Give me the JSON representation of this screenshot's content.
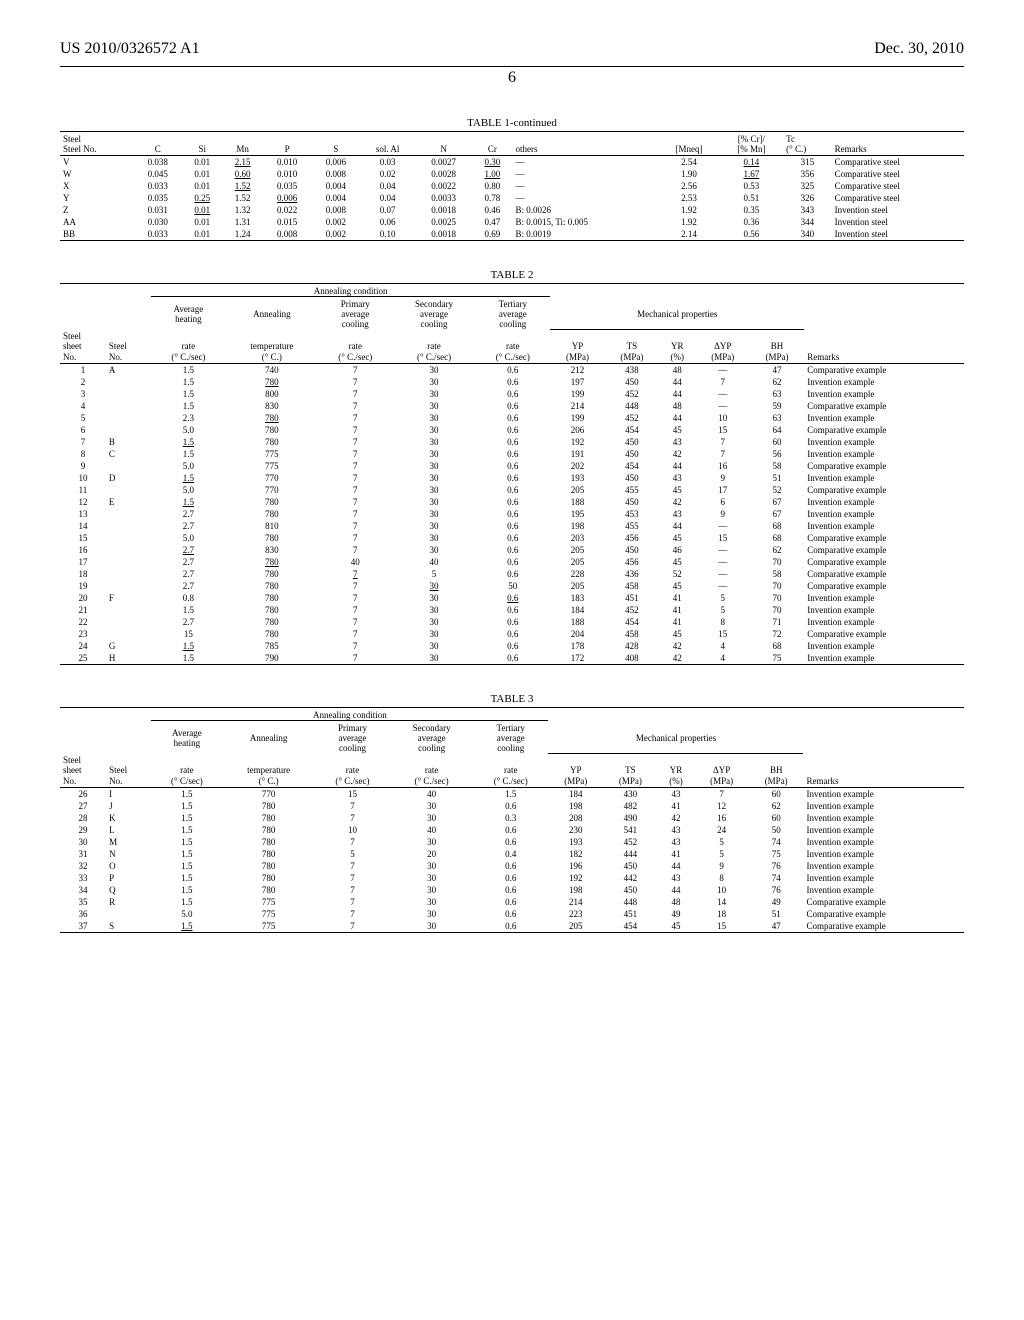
{
  "header": {
    "left": "US 2010/0326572 A1",
    "right": "Dec. 30, 2010",
    "page": "6"
  },
  "t1": {
    "caption": "TABLE 1-continued",
    "cols": [
      "Steel No.",
      "C",
      "Si",
      "Mn",
      "P",
      "S",
      "sol. Al",
      "N",
      "Cr",
      "others",
      "[Mneq]",
      "[% Cr]/ [% Mn]",
      "Tc (° C.)",
      "Remarks"
    ],
    "rows": [
      {
        "no": "V",
        "c": "0.038",
        "si": "0.01",
        "mn": "2.15",
        "mn_u": 1,
        "p": "0.010",
        "s": "0.006",
        "al": "0.03",
        "n": "0.0027",
        "cr": "0.30",
        "cr_u": 1,
        "oth": "—",
        "mneq": "2.54",
        "ratio": "0.14",
        "ratio_u": 1,
        "tc": "315",
        "rem": "Comparative steel"
      },
      {
        "no": "W",
        "c": "0.045",
        "si": "0.01",
        "mn": "0.60",
        "mn_u": 1,
        "p": "0.010",
        "s": "0.008",
        "al": "0.02",
        "n": "0.0028",
        "cr": "1.00",
        "cr_u": 1,
        "oth": "—",
        "mneq": "1.90",
        "ratio": "1.67",
        "ratio_u": 1,
        "tc": "356",
        "rem": "Comparative steel"
      },
      {
        "no": "X",
        "c": "0.033",
        "si": "0.01",
        "mn": "1.52",
        "mn_u": 1,
        "p": "0.035",
        "s": "0.004",
        "al": "0.04",
        "n": "0.0022",
        "cr": "0.80",
        "oth": "—",
        "mneq": "2.56",
        "ratio": "0.53",
        "tc": "325",
        "rem": "Comparative steel"
      },
      {
        "no": "Y",
        "c": "0.035",
        "si": "0.25",
        "si_u": 1,
        "mn": "1.52",
        "p": "0.006",
        "p_u": 1,
        "s": "0.004",
        "al": "0.04",
        "n": "0.0033",
        "cr": "0.78",
        "oth": "—",
        "mneq": "2.53",
        "ratio": "0.51",
        "tc": "326",
        "rem": "Comparative steel"
      },
      {
        "no": "Z",
        "c": "0.031",
        "si": "0.01",
        "si_u": 1,
        "mn": "1.32",
        "p": "0.022",
        "s": "0.008",
        "al": "0.07",
        "n": "0.0018",
        "cr": "0.46",
        "oth": "B: 0.0026",
        "mneq": "1.92",
        "ratio": "0.35",
        "tc": "343",
        "rem": "Invention steel"
      },
      {
        "no": "AA",
        "c": "0.030",
        "si": "0.01",
        "mn": "1.31",
        "p": "0.015",
        "s": "0.002",
        "al": "0.06",
        "n": "0.0025",
        "cr": "0.47",
        "oth": "B: 0.0015, Ti: 0.005",
        "mneq": "1.92",
        "ratio": "0.36",
        "tc": "344",
        "rem": "Invention steel"
      },
      {
        "no": "BB",
        "c": "0.033",
        "si": "0.01",
        "mn": "1.24",
        "p": "0.008",
        "s": "0.002",
        "al": "0.10",
        "n": "0.0018",
        "cr": "0.69",
        "oth": "B: 0.0019",
        "mneq": "2.14",
        "ratio": "0.56",
        "tc": "340",
        "rem": "Invention steel"
      }
    ]
  },
  "t2": {
    "caption": "TABLE 2",
    "group1": "Annealing condition",
    "group2": "Mechanical properties",
    "cols": {
      "c1_top": "Steel",
      "c1_bot1": "sheet",
      "c1_bot2": "No.",
      "c2_bot1": "Steel",
      "c2_bot2": "No.",
      "c3_top": "Average heating",
      "c3_bot1": "rate",
      "c3_bot2": "(° C./sec)",
      "c4_top": "Annealing",
      "c4_bot1": "temperature",
      "c4_bot2": "(° C.)",
      "c5_top": "Primary average cooling",
      "c5_bot1": "rate",
      "c5_bot2": "(° C./sec)",
      "c6_top": "Secondary average cooling",
      "c6_bot1": "rate",
      "c6_bot2": "(° C./sec)",
      "c7_top": "Tertiary average cooling",
      "c7_bot1": "rate",
      "c7_bot2": "(° C./sec)",
      "c8": "YP",
      "c8u": "(MPa)",
      "c9": "TS",
      "c9u": "(MPa)",
      "c10": "YR",
      "c10u": "(%)",
      "c11": "ΔYP",
      "c11u": "(MPa)",
      "c12": "BH",
      "c12u": "(MPa)",
      "c13": "Remarks"
    },
    "rows": [
      {
        "n": "1",
        "s": "A",
        "h": "1.5",
        "a": "740",
        "p": "7",
        "sc": "30",
        "t": "0.6",
        "yp": "212",
        "ts": "438",
        "yr": "48",
        "dy": "—",
        "bh": "47",
        "r": "Comparative example"
      },
      {
        "n": "2",
        "s": "",
        "h": "1.5",
        "a": "780",
        "a_u": 1,
        "p": "7",
        "sc": "30",
        "t": "0.6",
        "yp": "197",
        "ts": "450",
        "yr": "44",
        "dy": "7",
        "bh": "62",
        "r": "Invention example"
      },
      {
        "n": "3",
        "s": "",
        "h": "1.5",
        "a": "800",
        "p": "7",
        "sc": "30",
        "t": "0.6",
        "yp": "199",
        "ts": "452",
        "yr": "44",
        "dy": "—",
        "bh": "63",
        "r": "Invention example"
      },
      {
        "n": "4",
        "s": "",
        "h": "1.5",
        "a": "830",
        "p": "7",
        "sc": "30",
        "t": "0.6",
        "yp": "214",
        "ts": "448",
        "yr": "48",
        "dy": "—",
        "bh": "59",
        "r": "Comparative example"
      },
      {
        "n": "5",
        "s": "",
        "h": "2.3",
        "a": "780",
        "a_u": 1,
        "p": "7",
        "sc": "30",
        "t": "0.6",
        "yp": "199",
        "ts": "452",
        "yr": "44",
        "dy": "10",
        "bh": "63",
        "r": "Invention example"
      },
      {
        "n": "6",
        "s": "",
        "h": "5.0",
        "a": "780",
        "p": "7",
        "sc": "30",
        "t": "0.6",
        "yp": "206",
        "ts": "454",
        "yr": "45",
        "dy": "15",
        "bh": "64",
        "r": "Comparative example"
      },
      {
        "n": "7",
        "s": "B",
        "h": "1.5",
        "h_u": 1,
        "a": "780",
        "p": "7",
        "sc": "30",
        "t": "0.6",
        "yp": "192",
        "ts": "450",
        "yr": "43",
        "dy": "7",
        "bh": "60",
        "r": "Invention example"
      },
      {
        "n": "8",
        "s": "C",
        "h": "1.5",
        "a": "775",
        "p": "7",
        "sc": "30",
        "t": "0.6",
        "yp": "191",
        "ts": "450",
        "yr": "42",
        "dy": "7",
        "bh": "56",
        "r": "Invention example"
      },
      {
        "n": "9",
        "s": "",
        "h": "5.0",
        "a": "775",
        "p": "7",
        "sc": "30",
        "t": "0.6",
        "yp": "202",
        "ts": "454",
        "yr": "44",
        "dy": "16",
        "bh": "58",
        "r": "Comparative example"
      },
      {
        "n": "10",
        "s": "D",
        "h": "1.5",
        "h_u": 1,
        "a": "770",
        "p": "7",
        "sc": "30",
        "t": "0.6",
        "yp": "193",
        "ts": "450",
        "yr": "43",
        "dy": "9",
        "bh": "51",
        "r": "Invention example"
      },
      {
        "n": "11",
        "s": "",
        "h": "5.0",
        "a": "770",
        "p": "7",
        "sc": "30",
        "t": "0.6",
        "yp": "205",
        "ts": "455",
        "yr": "45",
        "dy": "17",
        "bh": "52",
        "r": "Comparative example"
      },
      {
        "n": "12",
        "s": "E",
        "h": "1.5",
        "h_u": 1,
        "a": "780",
        "p": "7",
        "sc": "30",
        "t": "0.6",
        "yp": "188",
        "ts": "450",
        "yr": "42",
        "dy": "6",
        "bh": "67",
        "r": "Invention example"
      },
      {
        "n": "13",
        "s": "",
        "h": "2.7",
        "a": "780",
        "p": "7",
        "sc": "30",
        "t": "0.6",
        "yp": "195",
        "ts": "453",
        "yr": "43",
        "dy": "9",
        "bh": "67",
        "r": "Invention example"
      },
      {
        "n": "14",
        "s": "",
        "h": "2.7",
        "a": "810",
        "p": "7",
        "sc": "30",
        "t": "0.6",
        "yp": "198",
        "ts": "455",
        "yr": "44",
        "dy": "—",
        "bh": "68",
        "r": "Invention example"
      },
      {
        "n": "15",
        "s": "",
        "h": "5.0",
        "a": "780",
        "p": "7",
        "sc": "30",
        "t": "0.6",
        "yp": "203",
        "ts": "456",
        "yr": "45",
        "dy": "15",
        "bh": "68",
        "r": "Comparative example"
      },
      {
        "n": "16",
        "s": "",
        "h": "2.7",
        "h_u": 1,
        "a": "830",
        "p": "7",
        "sc": "30",
        "t": "0.6",
        "yp": "205",
        "ts": "450",
        "yr": "46",
        "dy": "—",
        "bh": "62",
        "r": "Comparative example"
      },
      {
        "n": "17",
        "s": "",
        "h": "2.7",
        "a": "780",
        "a_u": 1,
        "p": "40",
        "sc": "40",
        "t": "0.6",
        "yp": "205",
        "ts": "456",
        "yr": "45",
        "dy": "—",
        "bh": "70",
        "r": "Comparative example"
      },
      {
        "n": "18",
        "s": "",
        "h": "2.7",
        "a": "780",
        "p": "7",
        "p_u": 1,
        "sc": "5",
        "t": "0.6",
        "yp": "228",
        "ts": "436",
        "yr": "52",
        "dy": "—",
        "bh": "58",
        "r": "Comparative example"
      },
      {
        "n": "19",
        "s": "",
        "h": "2.7",
        "a": "780",
        "p": "7",
        "sc": "30",
        "sc_u": 1,
        "t": "50",
        "yp": "205",
        "ts": "458",
        "yr": "45",
        "dy": "—",
        "bh": "70",
        "r": "Comparative example"
      },
      {
        "n": "20",
        "s": "F",
        "h": "0.8",
        "a": "780",
        "p": "7",
        "sc": "30",
        "t": "0.6",
        "t_u": 1,
        "yp": "183",
        "ts": "451",
        "yr": "41",
        "dy": "5",
        "bh": "70",
        "r": "Invention example"
      },
      {
        "n": "21",
        "s": "",
        "h": "1.5",
        "a": "780",
        "p": "7",
        "sc": "30",
        "t": "0.6",
        "yp": "184",
        "ts": "452",
        "yr": "41",
        "dy": "5",
        "bh": "70",
        "r": "Invention example"
      },
      {
        "n": "22",
        "s": "",
        "h": "2.7",
        "a": "780",
        "p": "7",
        "sc": "30",
        "t": "0.6",
        "yp": "188",
        "ts": "454",
        "yr": "41",
        "dy": "8",
        "bh": "71",
        "r": "Invention example"
      },
      {
        "n": "23",
        "s": "",
        "h": "15",
        "a": "780",
        "p": "7",
        "sc": "30",
        "t": "0.6",
        "yp": "204",
        "ts": "458",
        "yr": "45",
        "dy": "15",
        "bh": "72",
        "r": "Comparative example"
      },
      {
        "n": "24",
        "s": "G",
        "h": "1.5",
        "h_u": 1,
        "a": "785",
        "p": "7",
        "sc": "30",
        "t": "0.6",
        "yp": "178",
        "ts": "428",
        "yr": "42",
        "dy": "4",
        "bh": "68",
        "r": "Invention example"
      },
      {
        "n": "25",
        "s": "H",
        "h": "1.5",
        "a": "790",
        "p": "7",
        "sc": "30",
        "t": "0.6",
        "yp": "172",
        "ts": "408",
        "yr": "42",
        "dy": "4",
        "bh": "75",
        "r": "Invention example"
      }
    ]
  },
  "t3": {
    "caption": "TABLE 3",
    "rows": [
      {
        "n": "26",
        "s": "I",
        "h": "1.5",
        "a": "770",
        "p": "15",
        "sc": "40",
        "t": "1.5",
        "yp": "184",
        "ts": "430",
        "yr": "43",
        "dy": "7",
        "bh": "60",
        "r": "Invention example"
      },
      {
        "n": "27",
        "s": "J",
        "h": "1.5",
        "a": "780",
        "p": "7",
        "sc": "30",
        "t": "0.6",
        "yp": "198",
        "ts": "482",
        "yr": "41",
        "dy": "12",
        "bh": "62",
        "r": "Invention example"
      },
      {
        "n": "28",
        "s": "K",
        "h": "1.5",
        "a": "780",
        "p": "7",
        "sc": "30",
        "t": "0.3",
        "yp": "208",
        "ts": "490",
        "yr": "42",
        "dy": "16",
        "bh": "60",
        "r": "Invention example"
      },
      {
        "n": "29",
        "s": "L",
        "h": "1.5",
        "a": "780",
        "p": "10",
        "sc": "40",
        "t": "0.6",
        "yp": "230",
        "ts": "541",
        "yr": "43",
        "dy": "24",
        "bh": "50",
        "r": "Invention example"
      },
      {
        "n": "30",
        "s": "M",
        "h": "1.5",
        "a": "780",
        "p": "7",
        "sc": "30",
        "t": "0.6",
        "yp": "193",
        "ts": "452",
        "yr": "43",
        "dy": "5",
        "bh": "74",
        "r": "Invention example"
      },
      {
        "n": "31",
        "s": "N",
        "h": "1.5",
        "a": "780",
        "p": "5",
        "sc": "20",
        "t": "0.4",
        "yp": "182",
        "ts": "444",
        "yr": "41",
        "dy": "5",
        "bh": "75",
        "r": "Invention example"
      },
      {
        "n": "32",
        "s": "O",
        "h": "1.5",
        "a": "780",
        "p": "7",
        "sc": "30",
        "t": "0.6",
        "yp": "196",
        "ts": "450",
        "yr": "44",
        "dy": "9",
        "bh": "76",
        "r": "Invention example"
      },
      {
        "n": "33",
        "s": "P",
        "h": "1.5",
        "a": "780",
        "p": "7",
        "sc": "30",
        "t": "0.6",
        "yp": "192",
        "ts": "442",
        "yr": "43",
        "dy": "8",
        "bh": "74",
        "r": "Invention example"
      },
      {
        "n": "34",
        "s": "Q",
        "h": "1.5",
        "a": "780",
        "p": "7",
        "sc": "30",
        "t": "0.6",
        "yp": "198",
        "ts": "450",
        "yr": "44",
        "dy": "10",
        "bh": "76",
        "r": "Invention example"
      },
      {
        "n": "35",
        "s": "R",
        "h": "1.5",
        "a": "775",
        "p": "7",
        "sc": "30",
        "t": "0.6",
        "yp": "214",
        "ts": "448",
        "yr": "48",
        "dy": "14",
        "bh": "49",
        "r": "Comparative example"
      },
      {
        "n": "36",
        "s": "",
        "h": "5.0",
        "a": "775",
        "p": "7",
        "sc": "30",
        "t": "0.6",
        "yp": "223",
        "ts": "451",
        "yr": "49",
        "dy": "18",
        "bh": "51",
        "r": "Comparative example"
      },
      {
        "n": "37",
        "s": "S",
        "h": "1.5",
        "h_u": 1,
        "a": "775",
        "p": "7",
        "sc": "30",
        "t": "0.6",
        "yp": "205",
        "ts": "454",
        "yr": "45",
        "dy": "15",
        "bh": "47",
        "r": "Comparative example"
      }
    ]
  }
}
